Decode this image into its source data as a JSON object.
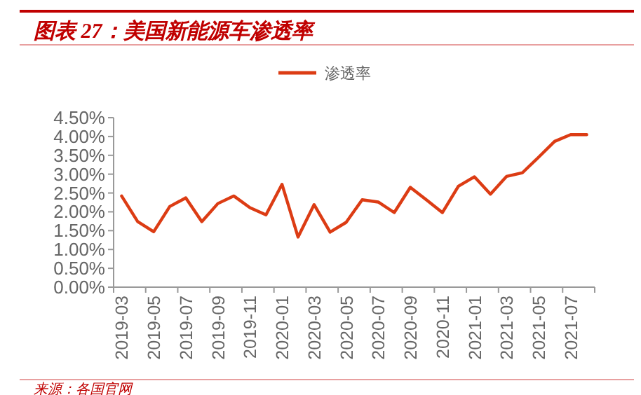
{
  "chart_data": {
    "type": "line",
    "title": "图表 27：美国新能源车渗透率",
    "categories": [
      "2019-03",
      null,
      "2019-05",
      null,
      "2019-07",
      null,
      "2019-09",
      null,
      "2019-11",
      null,
      "2020-01",
      null,
      "2020-03",
      null,
      "2020-05",
      null,
      "2020-07",
      null,
      "2020-09",
      null,
      "2020-11",
      null,
      "2021-01",
      null,
      "2021-03",
      null,
      "2021-05",
      null,
      "2021-07",
      null
    ],
    "series": [
      {
        "name": "渗透率",
        "color": "#dc3c14",
        "values": [
          2.42,
          1.74,
          1.47,
          2.14,
          2.37,
          1.74,
          2.22,
          2.42,
          2.11,
          1.92,
          2.73,
          1.33,
          2.19,
          1.46,
          1.72,
          2.32,
          2.26,
          1.98,
          2.65,
          2.32,
          1.98,
          2.68,
          2.93,
          2.47,
          2.94,
          3.04,
          3.45,
          3.87,
          4.05,
          4.05
        ]
      }
    ],
    "ylim": [
      0,
      4.5
    ],
    "yticks": [
      {
        "value": 0,
        "label": "0.00%"
      },
      {
        "value": 0.5,
        "label": "0.50%"
      },
      {
        "value": 1,
        "label": "1.00%"
      },
      {
        "value": 1.5,
        "label": "1.50%"
      },
      {
        "value": 2,
        "label": "2.00%"
      },
      {
        "value": 2.5,
        "label": "2.50%"
      },
      {
        "value": 3,
        "label": "3.00%"
      },
      {
        "value": 3.5,
        "label": "3.50%"
      },
      {
        "value": 4,
        "label": "4.00%"
      },
      {
        "value": 4.5,
        "label": "4.50%"
      }
    ],
    "legend": "top",
    "grid": false,
    "marker": "none",
    "line_style": "solid",
    "annotations": [
      "来源：各国官网"
    ]
  }
}
